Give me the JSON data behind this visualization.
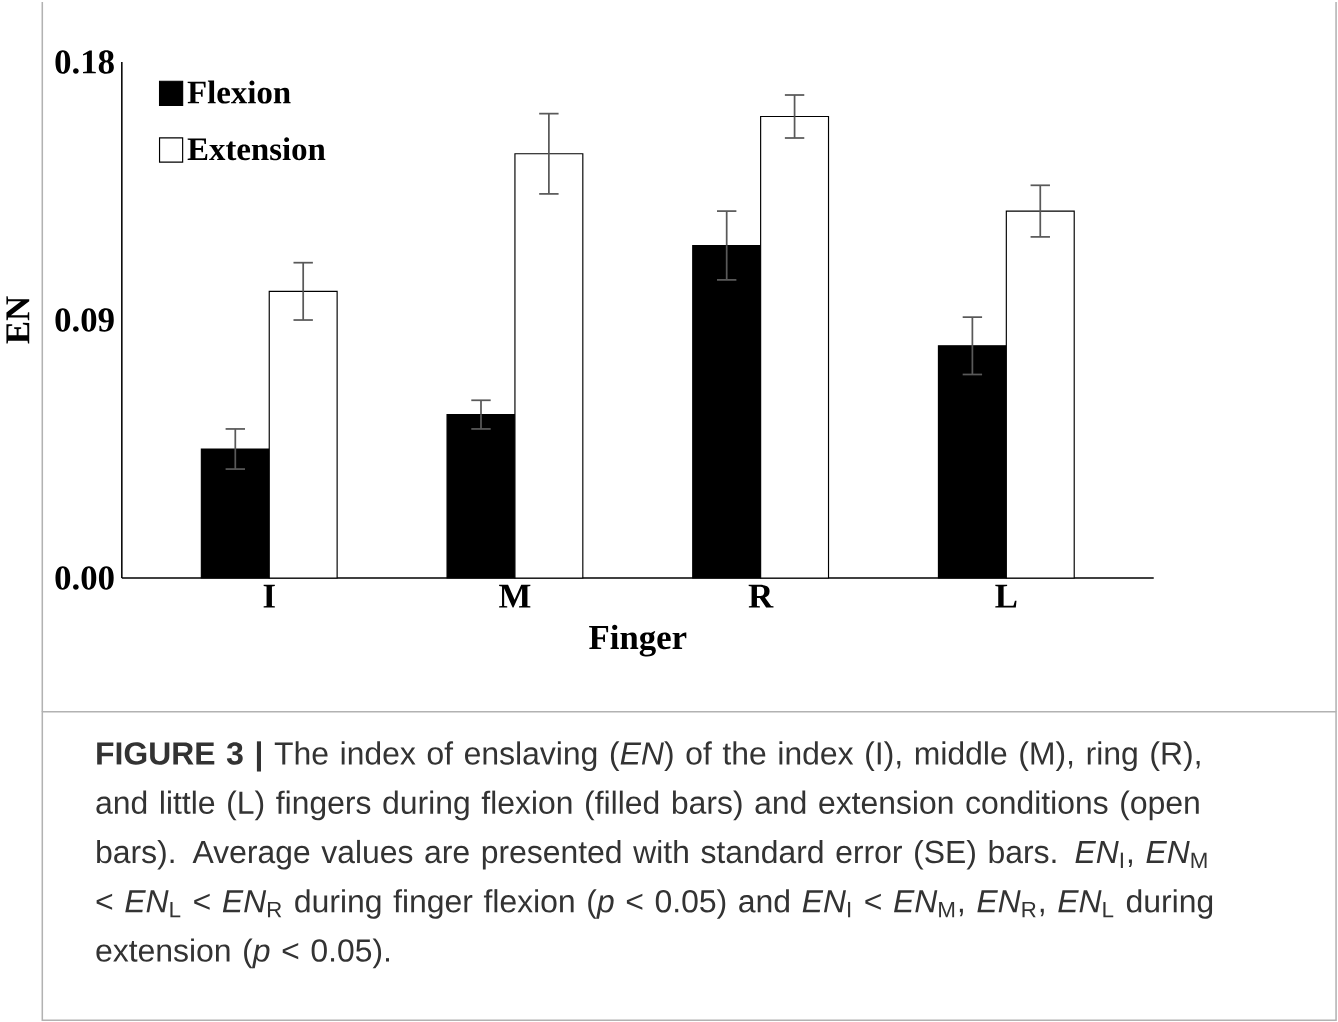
{
  "chart_data": {
    "type": "bar",
    "categories": [
      "I",
      "M",
      "R",
      "L"
    ],
    "series": [
      {
        "name": "Flexion",
        "color": "#000000",
        "values": [
          0.045,
          0.057,
          0.116,
          0.081
        ],
        "errors": [
          0.007,
          0.005,
          0.012,
          0.01
        ]
      },
      {
        "name": "Extension",
        "color": "#ffffff",
        "values": [
          0.1,
          0.148,
          0.161,
          0.128
        ],
        "errors": [
          0.01,
          0.014,
          0.0075,
          0.009
        ]
      }
    ],
    "xlabel": "Finger",
    "ylabel": "EN",
    "ylim": [
      0,
      0.18
    ],
    "yticks": [
      {
        "value": 0,
        "label": "0.00"
      },
      0.09,
      0.18
    ],
    "legend": "top left",
    "annotations": [
      "**FIGURE 3 |** The index of enslaving (*EN*) of the index (I), middle (M), ring (R), and little (L) fingers during flexion (filled bars) and extension conditions (open bars). Average values are presented with standard error (SE) bars. *EN*$_{I}$, *EN*$_{M}$ < *EN*$_{L}$ < *EN*$_{R}$ during finger flexion (*p* < 0.05) and *EN*$_{I}$ < *EN*$_{M}$, *EN*$_{R}$, *EN*$_{L}$ during extension (*p* < 0.05)."
    ]
  }
}
